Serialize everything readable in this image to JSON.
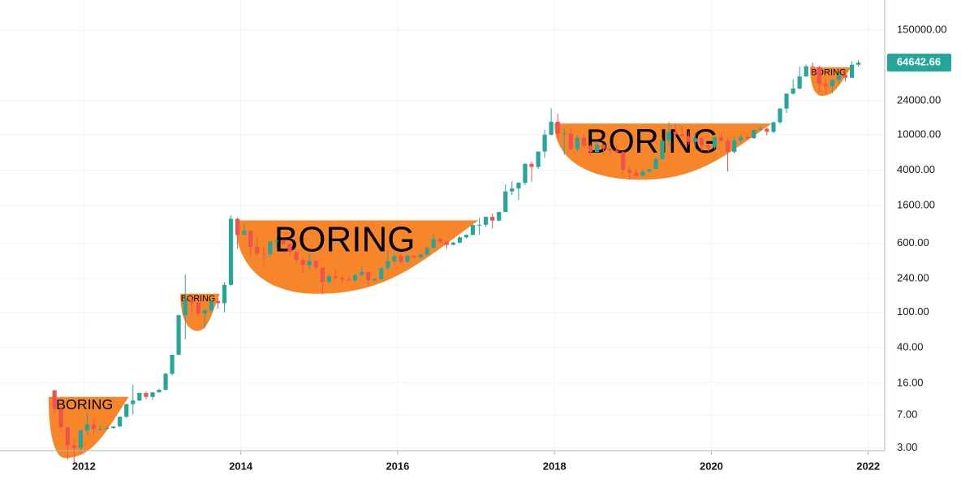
{
  "chart_data": {
    "type": "candlestick",
    "log_scale": true,
    "grid": true,
    "up_color": "#26a69a",
    "down_color": "#ef5350",
    "xlim": [
      2010.93,
      2022.21
    ],
    "xticks": [
      2012,
      2014,
      2016,
      2018,
      2020,
      2022
    ],
    "ylim": [
      2.78,
      328000
    ],
    "yticks": [
      {
        "value": 3,
        "label": "3.00"
      },
      {
        "value": 7,
        "label": "7.00"
      },
      {
        "value": 16,
        "label": "16.00"
      },
      {
        "value": 40,
        "label": "40.00"
      },
      {
        "value": 100,
        "label": "100.00"
      },
      {
        "value": 240,
        "label": "240.00"
      },
      {
        "value": 600,
        "label": "600.00"
      },
      {
        "value": 1600,
        "label": "1600.00"
      },
      {
        "value": 4000,
        "label": "4000.00"
      },
      {
        "value": 10000,
        "label": "10000.00"
      },
      {
        "value": 24000,
        "label": "24000.00"
      },
      {
        "value": 150000,
        "label": "150000.00"
      }
    ],
    "last_value": 64642.66,
    "x": [
      2011.625,
      2011.708,
      2011.792,
      2011.875,
      2011.958,
      2012.042,
      2012.125,
      2012.208,
      2012.292,
      2012.375,
      2012.458,
      2012.542,
      2012.625,
      2012.708,
      2012.792,
      2012.875,
      2012.958,
      2013.042,
      2013.125,
      2013.208,
      2013.292,
      2013.375,
      2013.458,
      2013.542,
      2013.625,
      2013.708,
      2013.792,
      2013.875,
      2013.958,
      2014.042,
      2014.125,
      2014.208,
      2014.292,
      2014.375,
      2014.458,
      2014.542,
      2014.625,
      2014.708,
      2014.792,
      2014.875,
      2014.958,
      2015.042,
      2015.125,
      2015.208,
      2015.292,
      2015.375,
      2015.458,
      2015.542,
      2015.625,
      2015.708,
      2015.792,
      2015.875,
      2015.958,
      2016.042,
      2016.125,
      2016.208,
      2016.292,
      2016.375,
      2016.458,
      2016.542,
      2016.625,
      2016.708,
      2016.792,
      2016.875,
      2016.958,
      2017.042,
      2017.125,
      2017.208,
      2017.292,
      2017.375,
      2017.458,
      2017.542,
      2017.625,
      2017.708,
      2017.792,
      2017.875,
      2017.958,
      2018.042,
      2018.125,
      2018.208,
      2018.292,
      2018.375,
      2018.458,
      2018.542,
      2018.625,
      2018.708,
      2018.792,
      2018.875,
      2018.958,
      2019.042,
      2019.125,
      2019.208,
      2019.292,
      2019.375,
      2019.458,
      2019.542,
      2019.625,
      2019.708,
      2019.792,
      2019.875,
      2019.958,
      2020.042,
      2020.125,
      2020.208,
      2020.292,
      2020.375,
      2020.458,
      2020.542,
      2020.625,
      2020.708,
      2020.792,
      2020.875,
      2020.958,
      2021.042,
      2021.125,
      2021.208,
      2021.292,
      2021.375,
      2021.458,
      2021.542,
      2021.625,
      2021.708,
      2021.792,
      2021.875
    ],
    "open": [
      13.3,
      8.2,
      5.1,
      3.2,
      3.0,
      4.7,
      5.5,
      4.9,
      4.9,
      5.0,
      5.2,
      6.7,
      9.3,
      10.2,
      12.4,
      11.2,
      12.6,
      13.5,
      20.4,
      33.4,
      93,
      139,
      129,
      97,
      106,
      135,
      127,
      204,
      1130,
      750,
      830,
      550,
      460,
      450,
      630,
      640,
      590,
      480,
      390,
      340,
      380,
      320,
      220,
      255,
      245,
      235,
      230,
      265,
      285,
      230,
      237,
      315,
      378,
      430,
      370,
      435,
      415,
      450,
      530,
      670,
      625,
      575,
      610,
      700,
      745,
      965,
      970,
      1190,
      1080,
      1350,
      2300,
      2480,
      2875,
      4700,
      4340,
      6470,
      10000,
      14000,
      10200,
      10300,
      6900,
      9250,
      7500,
      6390,
      7730,
      7000,
      6630,
      6370,
      4040,
      3740,
      3460,
      3850,
      4100,
      5320,
      8570,
      10820,
      10090,
      9610,
      8290,
      9150,
      7570,
      7190,
      9350,
      8540,
      6410,
      8630,
      9450,
      9140,
      11350,
      11650,
      10780,
      13800,
      19700,
      28990,
      33100,
      45200,
      58800,
      57700,
      37300,
      35000,
      41460,
      47100,
      43790,
      61300
    ],
    "high": [
      13.3,
      8.7,
      5.3,
      3.7,
      4.8,
      7.4,
      6.3,
      5.4,
      5.3,
      5.2,
      6.7,
      9.3,
      15.4,
      12.5,
      12.9,
      12.6,
      13.8,
      20.9,
      33.4,
      95,
      266,
      140,
      129,
      110,
      135,
      145,
      220,
      1240,
      1160,
      1000,
      860,
      720,
      550,
      630,
      680,
      650,
      600,
      490,
      410,
      460,
      400,
      320,
      270,
      300,
      260,
      250,
      270,
      320,
      290,
      245,
      335,
      500,
      465,
      465,
      440,
      440,
      465,
      550,
      780,
      700,
      630,
      630,
      720,
      755,
      970,
      1160,
      1200,
      1300,
      1350,
      2760,
      3000,
      2920,
      4750,
      5000,
      6470,
      11400,
      19800,
      17200,
      11800,
      11700,
      9800,
      9990,
      7780,
      8500,
      7760,
      7410,
      7680,
      6550,
      4340,
      4110,
      4200,
      4130,
      5630,
      9090,
      13880,
      13200,
      12330,
      10950,
      10540,
      9510,
      7740,
      9580,
      10500,
      9180,
      9470,
      10080,
      10400,
      11450,
      12480,
      12070,
      14100,
      19860,
      29300,
      41950,
      58350,
      61780,
      64850,
      59500,
      41300,
      42400,
      50500,
      52920,
      66950,
      69000
    ],
    "low": [
      7.1,
      4.6,
      2.2,
      2.0,
      2.7,
      4.2,
      4.3,
      4.7,
      4.8,
      4.9,
      5.2,
      6.5,
      7.1,
      10.1,
      10.5,
      10.4,
      12.5,
      13.2,
      19.5,
      33.1,
      50,
      100,
      90,
      66,
      100,
      110,
      100,
      200,
      520,
      740,
      420,
      440,
      340,
      420,
      540,
      570,
      440,
      360,
      280,
      310,
      300,
      160,
      210,
      235,
      210,
      225,
      220,
      255,
      200,
      225,
      235,
      300,
      350,
      350,
      365,
      405,
      410,
      440,
      530,
      600,
      520,
      590,
      600,
      680,
      740,
      750,
      920,
      880,
      1060,
      1350,
      2100,
      1830,
      2700,
      2970,
      4110,
      5500,
      9800,
      9000,
      6000,
      6600,
      6500,
      7040,
      5750,
      6070,
      5880,
      6100,
      6200,
      3560,
      3120,
      3350,
      3380,
      3690,
      4090,
      5280,
      7450,
      9070,
      9350,
      7710,
      7300,
      6520,
      6440,
      6870,
      8450,
      3850,
      6150,
      8110,
      8830,
      8980,
      10960,
      9830,
      10380,
      13200,
      17600,
      28130,
      32300,
      44950,
      47050,
      30000,
      28800,
      29300,
      37330,
      39600,
      43300,
      58500
    ],
    "close": [
      8.2,
      5.1,
      3.2,
      3.0,
      4.7,
      5.5,
      4.9,
      4.9,
      5.0,
      5.2,
      6.7,
      9.3,
      10.2,
      12.4,
      11.2,
      12.6,
      13.5,
      20.4,
      33.4,
      93,
      139,
      129,
      97,
      106,
      135,
      127,
      204,
      1130,
      750,
      830,
      550,
      460,
      450,
      630,
      640,
      590,
      480,
      390,
      340,
      380,
      320,
      220,
      255,
      245,
      235,
      230,
      265,
      285,
      230,
      237,
      315,
      378,
      430,
      370,
      435,
      415,
      450,
      530,
      670,
      625,
      575,
      610,
      700,
      745,
      965,
      970,
      1190,
      1080,
      1350,
      2300,
      2480,
      2875,
      4700,
      4340,
      6470,
      10000,
      14000,
      10200,
      10300,
      6900,
      9250,
      7500,
      6390,
      7730,
      7000,
      6630,
      6370,
      4040,
      3740,
      3460,
      3850,
      4100,
      5320,
      8570,
      10820,
      10090,
      9610,
      8290,
      9150,
      7570,
      7190,
      9350,
      8540,
      6410,
      8630,
      9450,
      9140,
      11350,
      11650,
      10780,
      13800,
      19700,
      28990,
      33100,
      45200,
      58800,
      57700,
      37300,
      35000,
      41460,
      47100,
      43790,
      61300,
      64642.66
    ],
    "annotation_color": "#f7862b",
    "annotations": [
      {
        "text": "BORING",
        "x0": 2011.55,
        "x1": 2012.57,
        "low_x": 2011.76,
        "top": 11.2,
        "bottom": 2.3
      },
      {
        "text": "BORING",
        "x0": 2013.23,
        "x1": 2013.73,
        "low_x": 2013.45,
        "top": 162,
        "bottom": 62
      },
      {
        "text": "BORING",
        "x0": 2013.93,
        "x1": 2017.03,
        "low_x": 2014.97,
        "top": 1086,
        "bottom": 162
      },
      {
        "text": "BORING",
        "x0": 2018.0,
        "x1": 2020.77,
        "low_x": 2019.1,
        "top": 13360,
        "bottom": 3110
      },
      {
        "text": "BORING",
        "x0": 2021.26,
        "x1": 2021.78,
        "low_x": 2021.41,
        "top": 57300,
        "bottom": 27350
      }
    ]
  }
}
